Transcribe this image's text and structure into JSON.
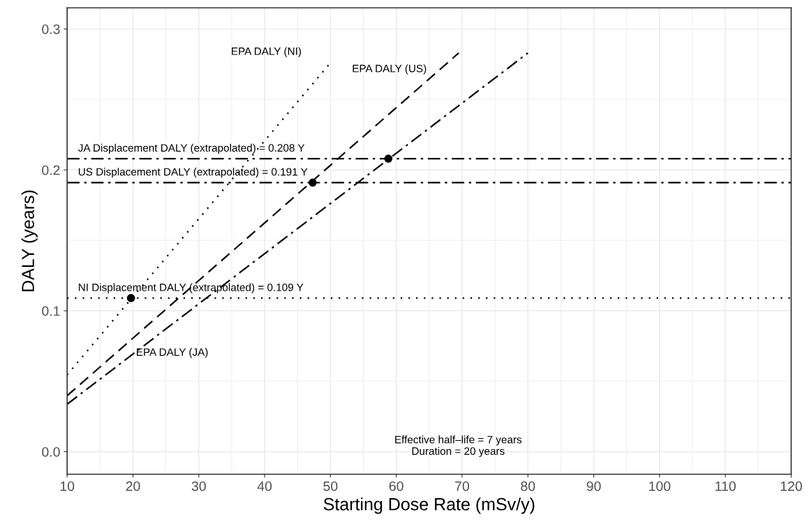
{
  "chart_data": {
    "type": "line",
    "xlabel": "Starting Dose Rate (mSv/y)",
    "ylabel": "DALY (years)",
    "xlim": [
      10,
      120
    ],
    "ylim": [
      -0.016,
      0.315
    ],
    "xticks": [
      10,
      20,
      30,
      40,
      50,
      60,
      70,
      80,
      90,
      100,
      110,
      120
    ],
    "yticks": [
      {
        "value": 0,
        "label": "0.0"
      },
      0.1,
      0.2,
      0.3
    ],
    "grid": true,
    "series": [
      {
        "name": "EPA DALY (NI)",
        "color": "#000000",
        "line_style": "dotted",
        "marker": "none",
        "x": [
          10,
          50
        ],
        "values": [
          0.0546,
          0.276
        ]
      },
      {
        "name": "EPA DALY (US)",
        "color": "#000000",
        "line_style": "dashed",
        "marker": "none",
        "x": [
          10,
          69.5
        ],
        "values": [
          0.0397,
          0.283
        ]
      },
      {
        "name": "EPA DALY (JA)",
        "color": "#000000",
        "line_style": "dashdot",
        "marker": "none",
        "x": [
          10,
          80
        ],
        "values": [
          0.0337,
          0.283
        ]
      },
      {
        "type": "scatter",
        "color": "#000000",
        "marker": "circle",
        "x": [
          19.7,
          47.3,
          58.8
        ],
        "values": [
          0.109,
          0.191,
          0.208
        ]
      }
    ],
    "ref_lines": [
      {
        "axis": "y",
        "value": 0.208,
        "color": "#000000",
        "line_style": "dashdot",
        "label": "JA Displacement DALY (extrapolated) = 0.208 Y"
      },
      {
        "axis": "y",
        "value": 0.191,
        "color": "#000000",
        "line_style": "dashdot",
        "label": "US Displacement DALY (extrapolated) = 0.191 Y"
      },
      {
        "axis": "y",
        "value": 0.109,
        "color": "#000000",
        "line_style": "dotted",
        "label": "NI Displacement DALY (extrapolated) = 0.109 Y"
      }
    ],
    "annotations": [
      "Effective half‒life = 7 years\nDuration = 20 years"
    ]
  }
}
